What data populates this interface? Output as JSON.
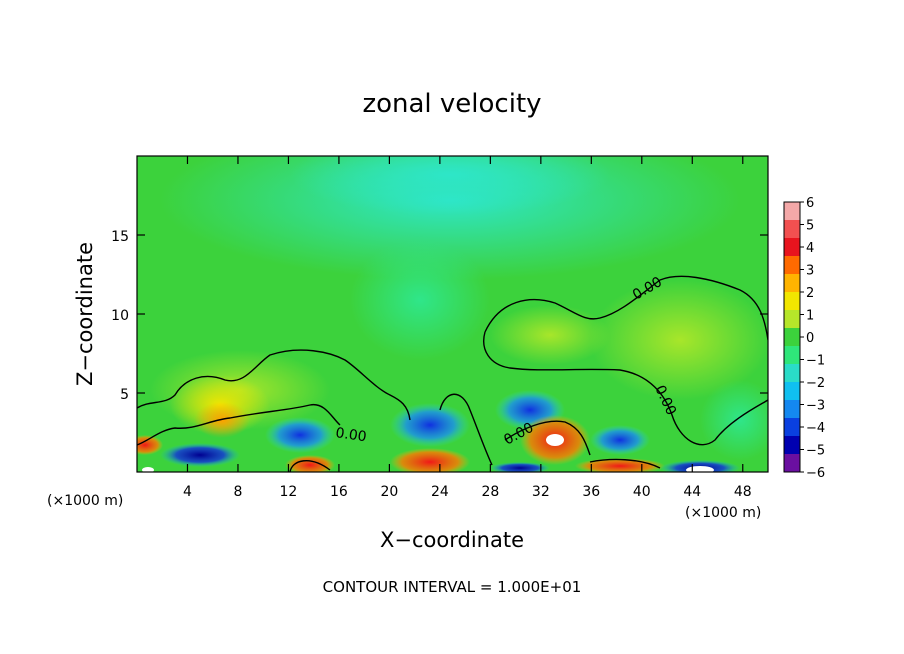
{
  "chart_data": {
    "type": "heatmap",
    "title": "zonal velocity",
    "xlabel": "X−coordinate",
    "ylabel": "Z−coordinate",
    "x_unit": "(×1000 m)",
    "xlim": [
      0,
      50
    ],
    "ylim": [
      0,
      20
    ],
    "x_ticks": [
      "4",
      "8",
      "12",
      "16",
      "20",
      "24",
      "28",
      "32",
      "36",
      "40",
      "44",
      "48"
    ],
    "y_ticks": [
      "5",
      "10",
      "15"
    ],
    "contour_label": "0.00",
    "contour_interval": "CONTOUR INTERVAL = 1.000E+01",
    "colorbar": {
      "ticks": [
        "6",
        "5",
        "4",
        "3",
        "2",
        "1",
        "0",
        "−1",
        "−2",
        "−3",
        "−4",
        "−5",
        "−6"
      ],
      "colors": [
        "#f4a8a8",
        "#f25050",
        "#e8141e",
        "#ff6a00",
        "#ffb400",
        "#f2e600",
        "#b6e62a",
        "#3cd23c",
        "#2fe67a",
        "#2adcc8",
        "#10c0f0",
        "#1488f0",
        "#0a40e0",
        "#0000b0",
        "#6a0fa0"
      ]
    },
    "features": [
      {
        "x": 22,
        "z": 18,
        "u": -1.8
      },
      {
        "x": 8,
        "z": 4.5,
        "u": 2.5
      },
      {
        "x": 7,
        "z": 3.5,
        "u": 3
      },
      {
        "x": 33,
        "z": 2,
        "u": 4.5
      },
      {
        "x": 23,
        "z": 0.7,
        "u": 5
      },
      {
        "x": 14,
        "z": 0.5,
        "u": 5
      },
      {
        "x": 39,
        "z": 0.5,
        "u": 4
      },
      {
        "x": 1,
        "z": 1.8,
        "u": 5
      },
      {
        "x": 32,
        "z": 3.5,
        "u": -3
      },
      {
        "x": 23,
        "z": 3,
        "u": -3
      },
      {
        "x": 12,
        "z": 2.8,
        "u": -3.5
      },
      {
        "x": 5,
        "z": 1.5,
        "u": -4
      },
      {
        "x": 44,
        "z": 0.5,
        "u": -5
      },
      {
        "x": 8,
        "z": 0.3,
        "u": -5
      },
      {
        "x": 42,
        "z": 8,
        "u": 1
      }
    ]
  }
}
